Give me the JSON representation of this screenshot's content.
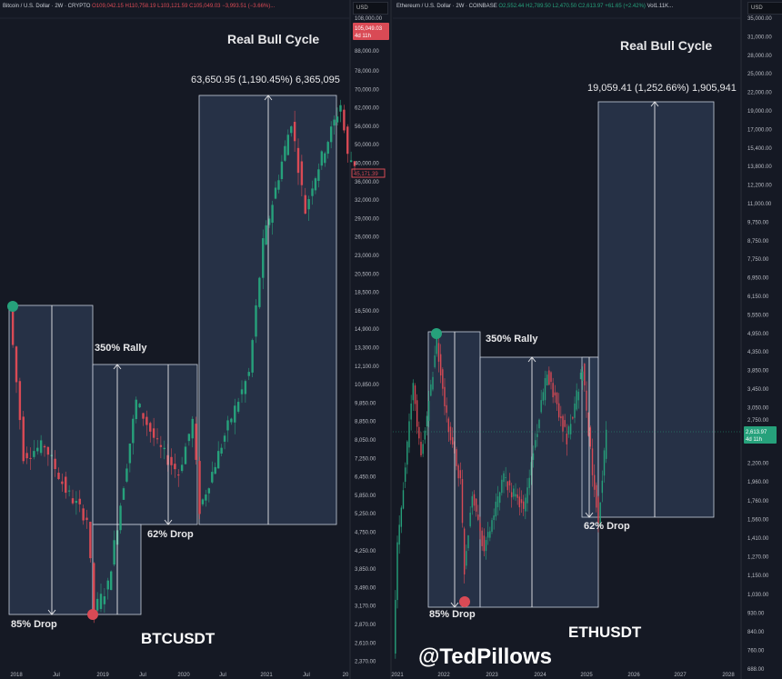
{
  "btc_header": {
    "title": "Bitcoin / U.S. Dollar · 2W · CRYPTO",
    "o": "O109,042.15",
    "h": "H110,758.19",
    "l": "L103,121.59",
    "c": "C105,049.03",
    "chg": "−3,993.51 (−3.66%)...",
    "currency": "USD",
    "last_price": "105,049.03",
    "countdown": "4d 11h",
    "marker_price": "45,171.39"
  },
  "eth_header": {
    "title": "Ethereum / U.S. Dollar · 2W · COINBASE",
    "o": "O2,552.44",
    "h": "H2,789.50",
    "l": "L2,470.50",
    "c": "C2,613.97",
    "chg": "+61.65 (+2.42%)",
    "vol": "Vol1.11K...",
    "currency": "USD",
    "last_price": "2,613.97",
    "countdown": "4d 11h"
  },
  "colors": {
    "up": "#26a17b",
    "down": "#d94a55",
    "box": "#2c3a52"
  },
  "chart_data": [
    {
      "type": "candlestick",
      "symbol_label": "BTCUSDT",
      "scale": "log",
      "title": "Real Bull Cycle",
      "y_ticks": [
        "108,000.00",
        "88,000.00",
        "78,000.00",
        "70,000.00",
        "62,000.00",
        "56,000.00",
        "50,000.00",
        "40,000.00",
        "36,000.00",
        "32,000.00",
        "29,000.00",
        "26,000.00",
        "23,000.00",
        "20,500.00",
        "18,500.00",
        "16,500.00",
        "14,900.00",
        "13,300.00",
        "12,100.00",
        "10,850.00",
        "9,850.00",
        "8,850.00",
        "8,050.00",
        "7,250.00",
        "6,450.00",
        "5,850.00",
        "5,250.00",
        "4,750.00",
        "4,250.00",
        "3,850.00",
        "3,490.00",
        "3,170.00",
        "2,870.00",
        "2,610.00",
        "2,370.00"
      ],
      "x_ticks": [
        "2018",
        "Jul",
        "2019",
        "Jul",
        "2020",
        "Jul",
        "2021",
        "Jul",
        "20"
      ],
      "annotations": {
        "rally": "350% Rally",
        "drop1": "85% Drop",
        "drop2": "62% Drop",
        "measure": "63,650.95 (1,190.45%) 6,365,095"
      },
      "approx_path": [
        [
          "2017-12",
          19000
        ],
        [
          "2018-02",
          8000
        ],
        [
          "2018-05",
          8500
        ],
        [
          "2018-08",
          6500
        ],
        [
          "2018-11",
          5500
        ],
        [
          "2018-12",
          3200
        ],
        [
          "2019-02",
          3700
        ],
        [
          "2019-06",
          11000
        ],
        [
          "2019-09",
          8500
        ],
        [
          "2019-12",
          7200
        ],
        [
          "2020-02",
          9800
        ],
        [
          "2020-03",
          5800
        ],
        [
          "2020-07",
          9500
        ],
        [
          "2020-10",
          13000
        ],
        [
          "2020-12",
          28000
        ],
        [
          "2021-04",
          58000
        ],
        [
          "2021-06",
          34000
        ],
        [
          "2021-07",
          40000
        ],
        [
          "2021-11",
          64000
        ],
        [
          "2021-12",
          47000
        ],
        [
          "2022-01",
          45171
        ]
      ]
    },
    {
      "type": "candlestick",
      "symbol_label": "ETHUSDT",
      "scale": "log",
      "title": "Real Bull Cycle",
      "y_ticks": [
        "35,000.00",
        "31,000.00",
        "28,000.00",
        "25,000.00",
        "22,000.00",
        "19,000.00",
        "17,000.00",
        "15,400.00",
        "13,800.00",
        "12,200.00",
        "11,000.00",
        "9,750.00",
        "8,750.00",
        "7,750.00",
        "6,950.00",
        "6,150.00",
        "5,550.00",
        "4,950.00",
        "4,350.00",
        "3,850.00",
        "3,450.00",
        "3,050.00",
        "2,750.00",
        "2,200.00",
        "1,960.00",
        "1,760.00",
        "1,560.00",
        "1,410.00",
        "1,270.00",
        "1,150.00",
        "1,030.00",
        "930.00",
        "840.00",
        "760.00",
        "688.00",
        "623.00"
      ],
      "x_ticks": [
        "2021",
        "2022",
        "2023",
        "2024",
        "2025",
        "2026",
        "2027",
        "2028"
      ],
      "annotations": {
        "rally": "350% Rally",
        "drop1": "85% Drop",
        "drop2": "62% Drop",
        "measure": "19,059.41 (1,252.66%) 1,905,941"
      },
      "approx_path": [
        [
          "2020-12",
          650
        ],
        [
          "2021-01",
          1300
        ],
        [
          "2021-05",
          3500
        ],
        [
          "2021-07",
          2200
        ],
        [
          "2021-11",
          4600
        ],
        [
          "2022-01",
          3000
        ],
        [
          "2022-05",
          1900
        ],
        [
          "2022-06",
          1100
        ],
        [
          "2022-08",
          1800
        ],
        [
          "2022-11",
          1250
        ],
        [
          "2023-04",
          1950
        ],
        [
          "2023-09",
          1600
        ],
        [
          "2024-03",
          3800
        ],
        [
          "2024-08",
          2500
        ],
        [
          "2024-12",
          3900
        ],
        [
          "2025-02",
          2300
        ],
        [
          "2025-04",
          1500
        ],
        [
          "2025-06",
          2614
        ]
      ]
    }
  ],
  "watermark": "@TedPillows"
}
